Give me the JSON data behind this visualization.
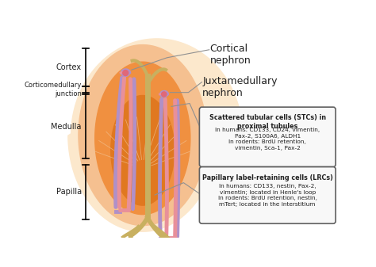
{
  "background_color": "#ffffff",
  "kidney_outermost_color": "#fce8cc",
  "kidney_outer_color": "#f5c090",
  "kidney_inner_color": "#f09040",
  "kidney_core_color": "#e07820",
  "cortex_label": "Cortex",
  "corticomedullary_label": "Corticomedullary\njunction",
  "medulla_label": "Medulla",
  "papilla_label": "Papilla",
  "cortical_nephron_label": "Cortical\nnephron",
  "juxtamedullary_label": "Juxtamedullary\nnephron",
  "stc_title": "Scattered tubular cells (STCs) in\nproximal tubules",
  "stc_body": "In humans: CD133, CD24, vimentin,\nPax-2, S100A6, ALDH1\nIn rodents: BrdU retention,\nvimentin, Sca-1, Pax-2",
  "lrc_title": "Papillary label-retaining cells (LRCs)",
  "lrc_body": "In humans: CD133, nestin, Pax-2,\nvimentin; located in Henle's loop\nIn rodents: BrdU retention, nestin,\nmTert; located in the interstitium",
  "tubule_pink_color": "#e8909a",
  "tubule_purple_color": "#b090c8",
  "tubule_gold_color": "#c8b060",
  "glomerulus_pink_color": "#e06878",
  "box_border_color": "#606060",
  "box_fill_color": "#f8f8f8",
  "text_color": "#202020",
  "line_color": "#909090"
}
